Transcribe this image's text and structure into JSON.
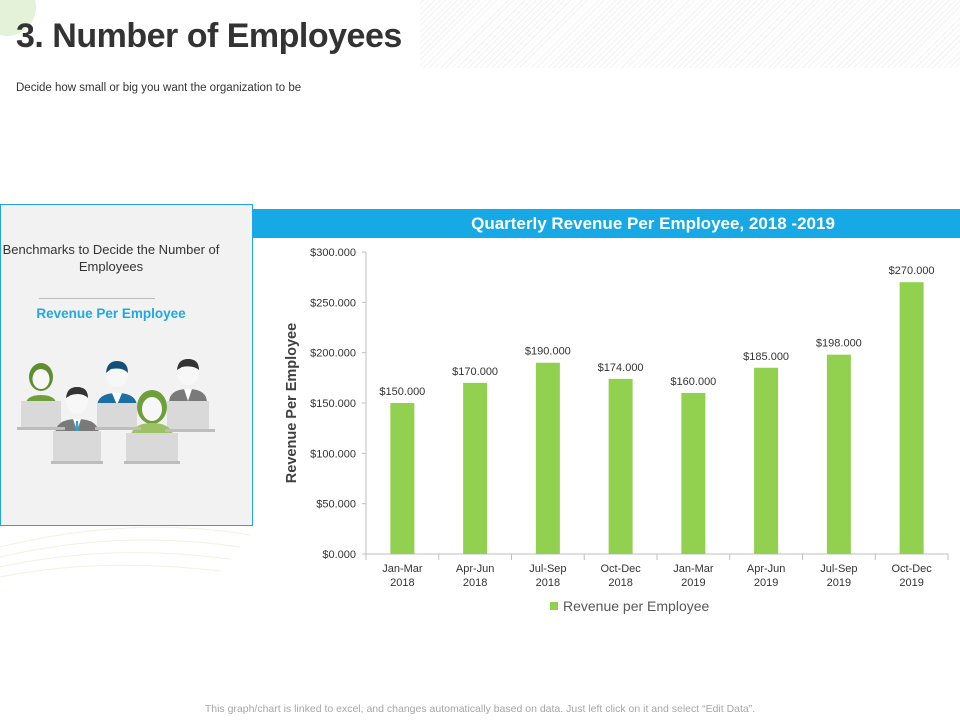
{
  "page": {
    "title": "3. Number of Employees",
    "subtitle": "Decide how small or big you want the organization to be",
    "footer": "This graph/chart is linked to excel, and changes automatically based on data. Just left click on it and select “Edit Data”."
  },
  "benchmark": {
    "title": "Benchmarks to Decide the Number of Employees",
    "metric": "Revenue Per Employee"
  },
  "colors": {
    "accent": "#17a9e6",
    "bar": "#92d050",
    "metric": "#21a8e3"
  },
  "chart_data": {
    "type": "bar",
    "title": "Quarterly Revenue Per Employee, 2018 -2019",
    "xlabel": "",
    "ylabel": "Revenue Per Employee",
    "categories": [
      [
        "Jan-Mar",
        "2018"
      ],
      [
        "Apr-Jun",
        "2018"
      ],
      [
        "Jul-Sep",
        "2018"
      ],
      [
        "Oct-Dec",
        "2018"
      ],
      [
        "Jan-Mar",
        "2019"
      ],
      [
        "Apr-Jun",
        "2019"
      ],
      [
        "Jul-Sep",
        "2019"
      ],
      [
        "Oct-Dec",
        "2019"
      ]
    ],
    "series": [
      {
        "name": "Revenue per Employee",
        "values": [
          150,
          170,
          190,
          174,
          160,
          185,
          198,
          270
        ],
        "labels": [
          "$150.000",
          "$170.000",
          "$190.000",
          "$174.000",
          "$160.000",
          "$185.000",
          "$198.000",
          "$270.000"
        ]
      }
    ],
    "ylim": [
      0,
      300
    ],
    "yticks": [
      0,
      50,
      100,
      150,
      200,
      250,
      300
    ],
    "ytick_labels": [
      "$0.000",
      "$50.000",
      "$100.000",
      "$150.000",
      "$200.000",
      "$250.000",
      "$300.000"
    ],
    "legend": "bottom",
    "grid": false
  }
}
